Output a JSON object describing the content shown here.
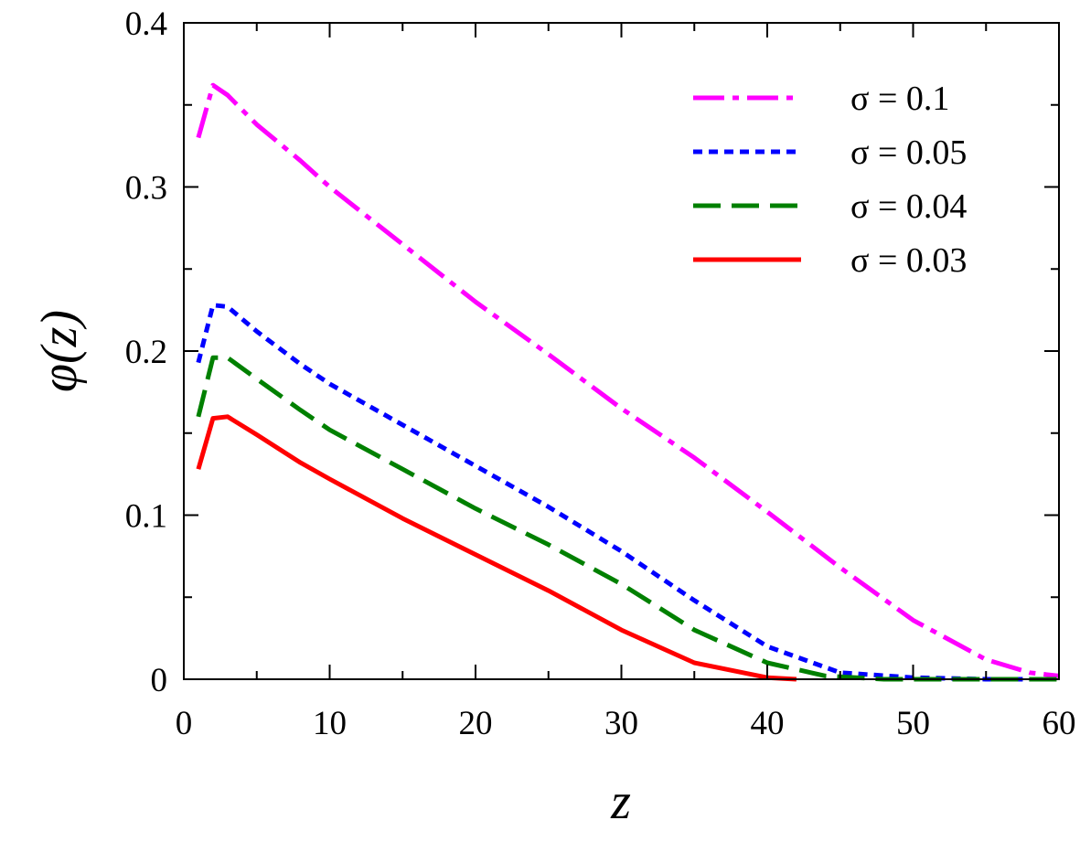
{
  "chart_data": {
    "type": "line",
    "xlabel": "z",
    "ylabel": "φ(z)",
    "xlim": [
      0,
      60
    ],
    "ylim": [
      0,
      0.4
    ],
    "x_ticks": [
      "0",
      "10",
      "20",
      "30",
      "40",
      "50",
      "60"
    ],
    "y_ticks": [
      "0",
      "0.1",
      "0.2",
      "0.3",
      "0.4"
    ],
    "grid": false,
    "legend_position": "top-right",
    "series": [
      {
        "name": "σ = 0.1",
        "color": "#ff00ff",
        "style": "dash-dot",
        "points": [
          [
            1,
            0.33
          ],
          [
            2,
            0.362
          ],
          [
            3,
            0.356
          ],
          [
            5,
            0.338
          ],
          [
            8,
            0.316
          ],
          [
            10,
            0.3
          ],
          [
            15,
            0.265
          ],
          [
            20,
            0.23
          ],
          [
            25,
            0.198
          ],
          [
            30,
            0.165
          ],
          [
            35,
            0.135
          ],
          [
            40,
            0.102
          ],
          [
            45,
            0.068
          ],
          [
            50,
            0.036
          ],
          [
            55,
            0.012
          ],
          [
            58,
            0.004
          ],
          [
            60,
            0.002
          ]
        ]
      },
      {
        "name": "σ = 0.05",
        "color": "#0000ff",
        "style": "dotted",
        "points": [
          [
            1,
            0.193
          ],
          [
            2,
            0.228
          ],
          [
            3,
            0.227
          ],
          [
            5,
            0.212
          ],
          [
            8,
            0.192
          ],
          [
            10,
            0.18
          ],
          [
            15,
            0.155
          ],
          [
            20,
            0.13
          ],
          [
            25,
            0.105
          ],
          [
            30,
            0.078
          ],
          [
            35,
            0.048
          ],
          [
            40,
            0.02
          ],
          [
            45,
            0.004
          ],
          [
            50,
            0.001
          ],
          [
            55,
            0.0
          ],
          [
            60,
            0.0
          ]
        ]
      },
      {
        "name": "σ = 0.04",
        "color": "#008000",
        "style": "long-dash",
        "points": [
          [
            1,
            0.16
          ],
          [
            2,
            0.196
          ],
          [
            3,
            0.196
          ],
          [
            5,
            0.183
          ],
          [
            8,
            0.164
          ],
          [
            10,
            0.152
          ],
          [
            15,
            0.128
          ],
          [
            20,
            0.104
          ],
          [
            25,
            0.082
          ],
          [
            30,
            0.058
          ],
          [
            35,
            0.03
          ],
          [
            40,
            0.01
          ],
          [
            44,
            0.002
          ],
          [
            48,
            0.0
          ],
          [
            60,
            0.0
          ]
        ]
      },
      {
        "name": "σ = 0.03",
        "color": "#ff0000",
        "style": "solid",
        "points": [
          [
            1,
            0.128
          ],
          [
            2,
            0.159
          ],
          [
            3,
            0.16
          ],
          [
            5,
            0.149
          ],
          [
            8,
            0.132
          ],
          [
            10,
            0.122
          ],
          [
            15,
            0.098
          ],
          [
            20,
            0.076
          ],
          [
            25,
            0.054
          ],
          [
            30,
            0.03
          ],
          [
            35,
            0.01
          ],
          [
            40,
            0.001
          ],
          [
            42,
            0.0
          ]
        ]
      }
    ]
  }
}
